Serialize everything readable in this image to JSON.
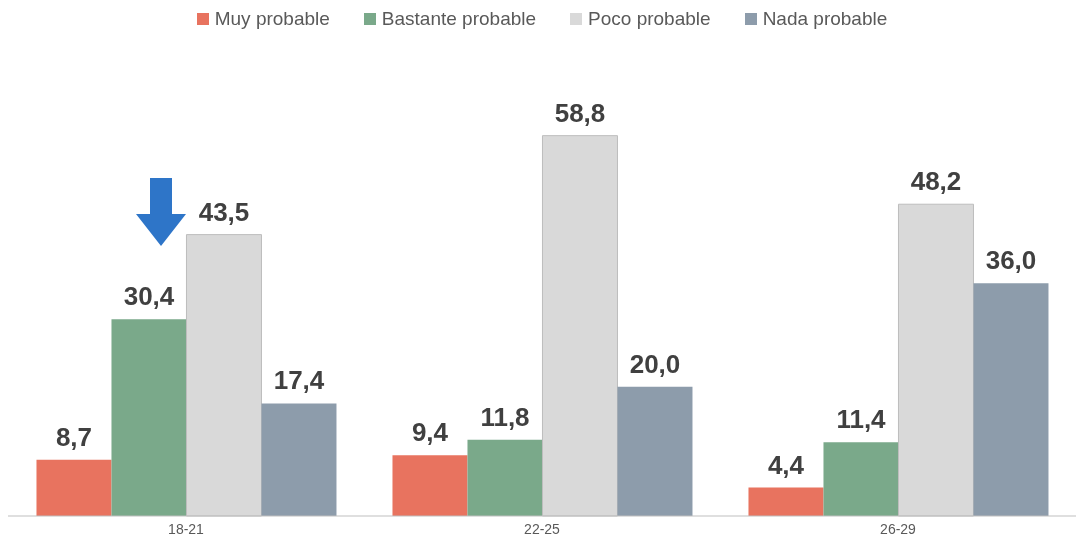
{
  "chart_data": {
    "type": "bar",
    "categories": [
      "18-21",
      "22-25",
      "26-29"
    ],
    "series": [
      {
        "name": "Muy probable",
        "color": "#e8735f",
        "values": [
          8.7,
          9.4,
          4.4
        ],
        "value_labels": [
          "8,7",
          "9,4",
          "4,4"
        ]
      },
      {
        "name": "Bastante probable",
        "color": "#7aa98a",
        "values": [
          30.4,
          11.8,
          11.4
        ],
        "value_labels": [
          "30,4",
          "11,8",
          "11,4"
        ]
      },
      {
        "name": "Poco probable",
        "color": "#d9d9d9",
        "values": [
          43.5,
          58.8,
          48.2
        ],
        "value_labels": [
          "43,5",
          "58,8",
          "48,2"
        ]
      },
      {
        "name": "Nada probable",
        "color": "#8d9cab",
        "values": [
          17.4,
          20.0,
          36.0
        ],
        "value_labels": [
          "17,4",
          "20,0",
          "36,0"
        ]
      }
    ],
    "legend": "top"
  }
}
